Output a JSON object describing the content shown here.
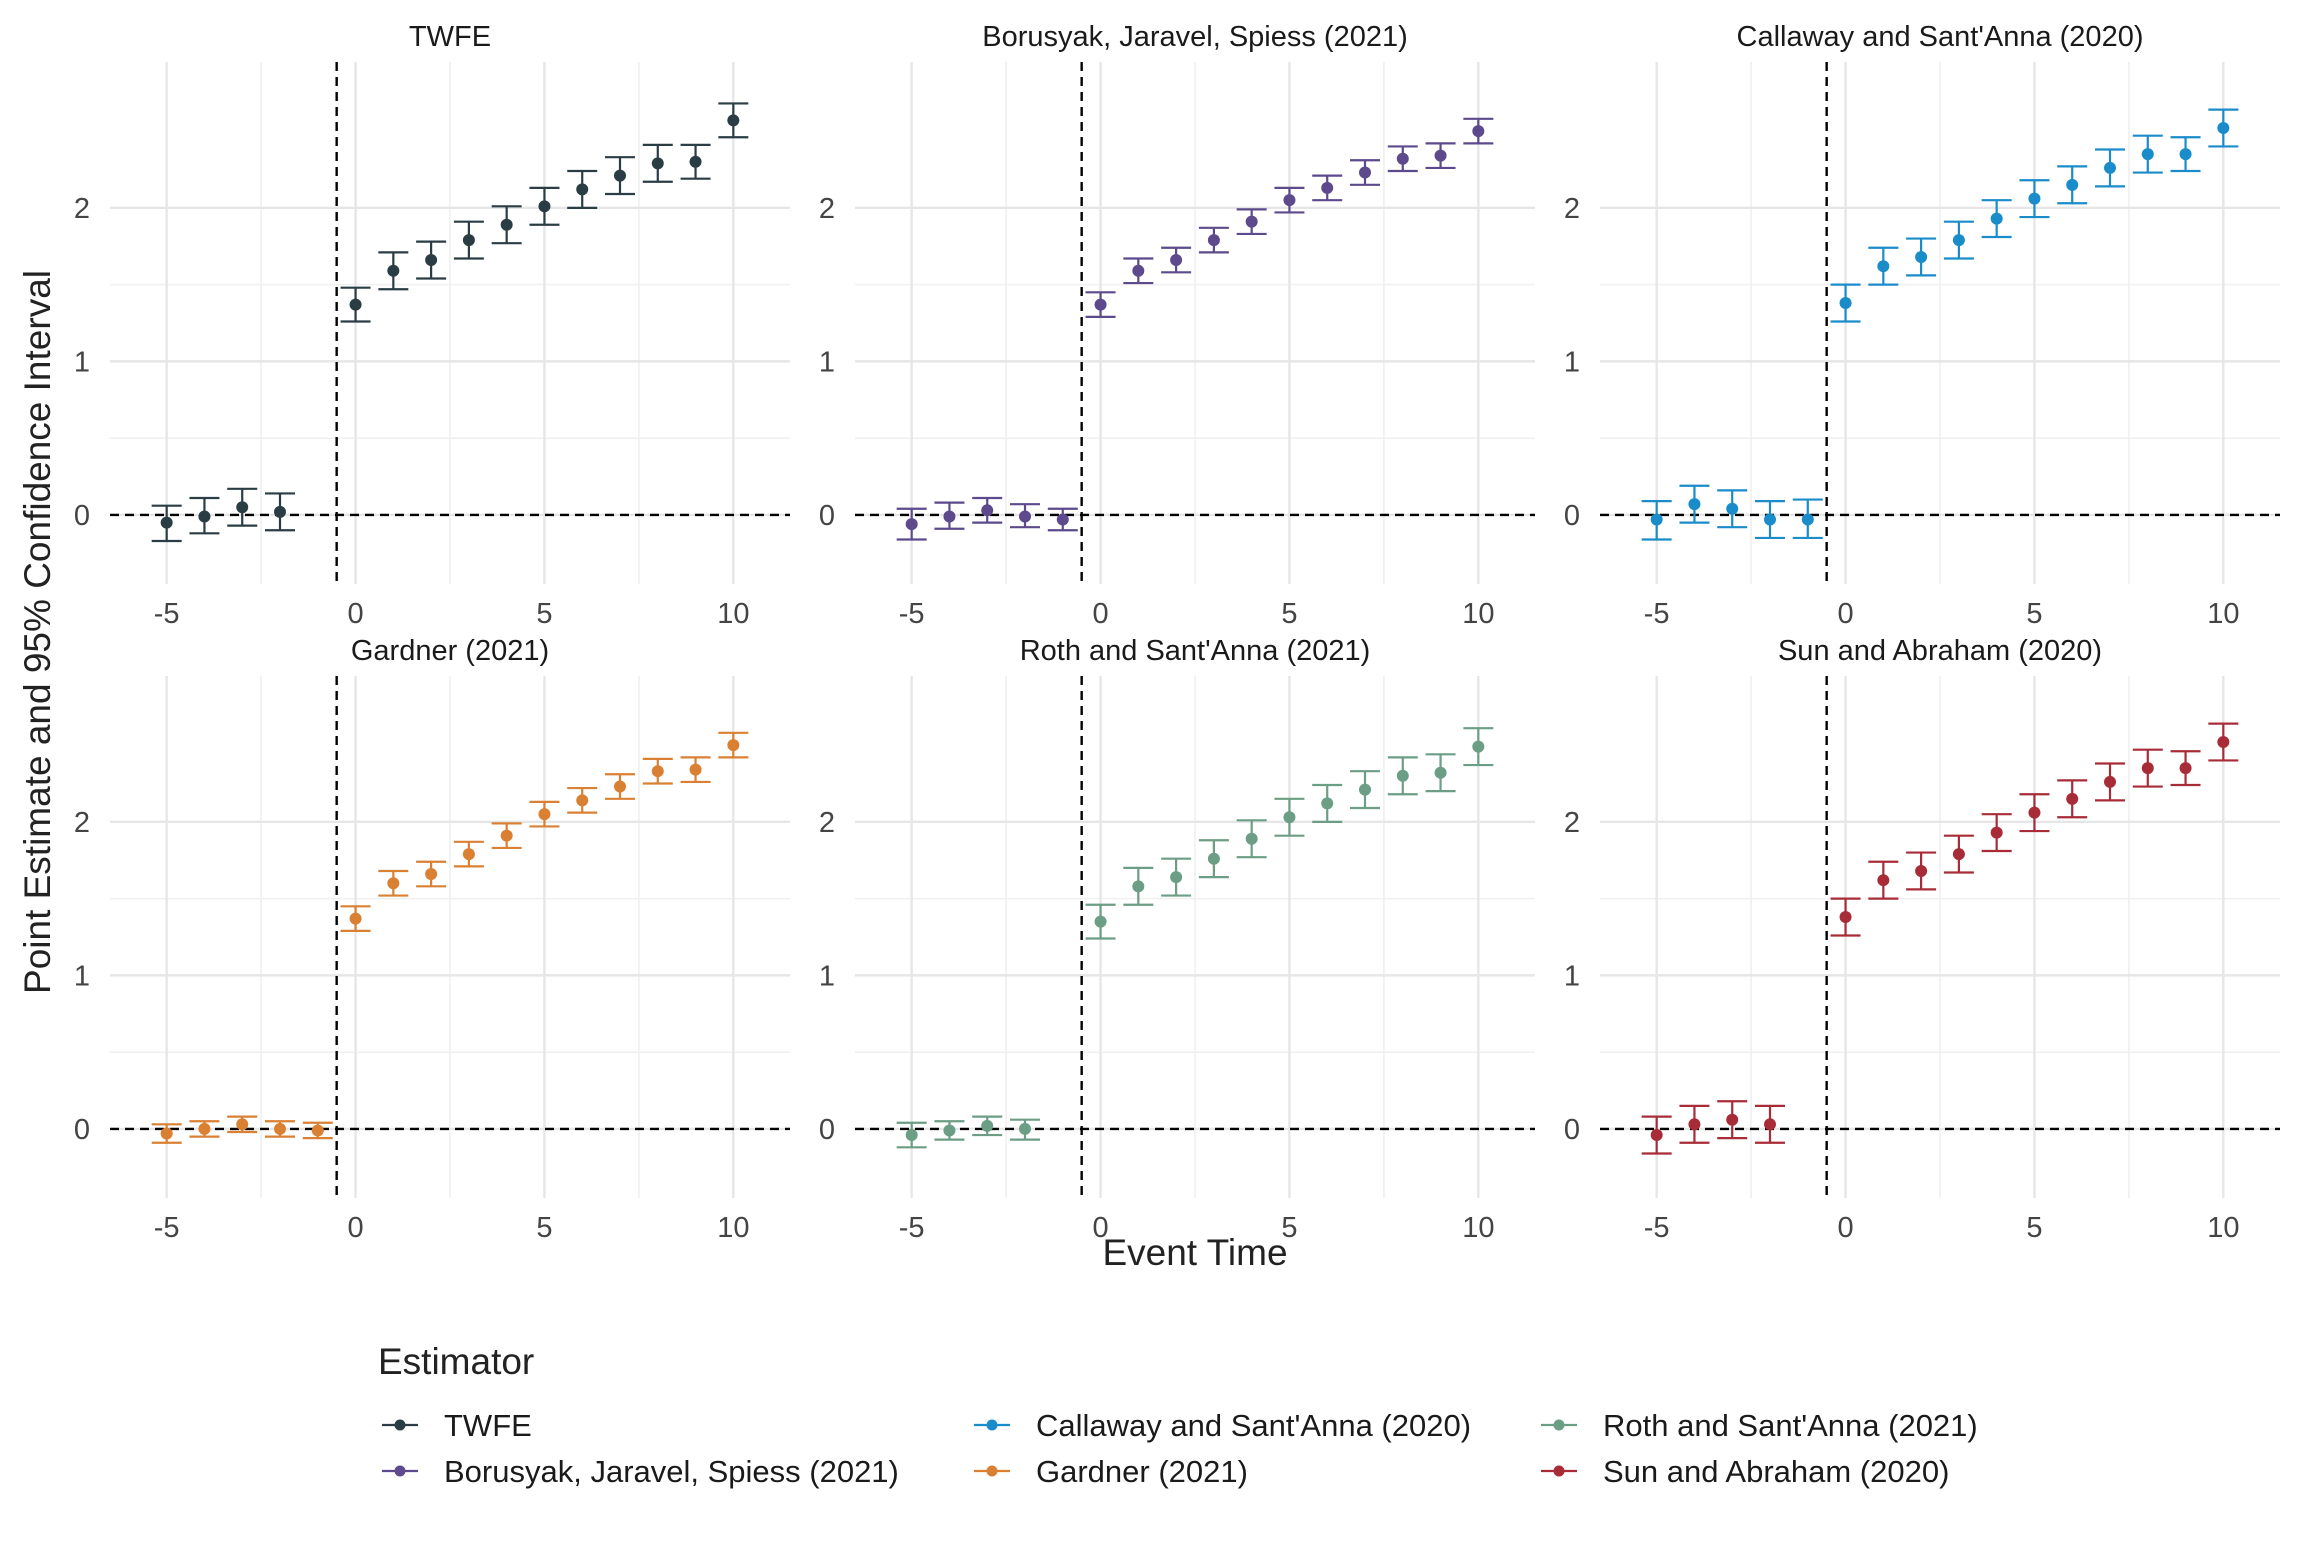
{
  "figure": {
    "xlabel": "Event Time",
    "ylabel": "Point Estimate and 95% Confidence Interval",
    "legend_title": "Estimator",
    "legend_position": "bottom"
  },
  "chart_data": [
    {
      "type": "scatter",
      "title": "TWFE",
      "color": "#2a3d45",
      "xlim": [
        -6.5,
        11.5
      ],
      "ylim": [
        -0.45,
        2.95
      ],
      "xticks": [
        -5,
        0,
        5,
        10
      ],
      "yticks": [
        0,
        1,
        2
      ],
      "reference_lines": {
        "vertical_x": -0.5,
        "horizontal_y": 0
      },
      "grid": true,
      "x": [
        -5,
        -4,
        -3,
        -2,
        0,
        1,
        2,
        3,
        4,
        5,
        6,
        7,
        8,
        9,
        10
      ],
      "estimate": [
        -0.05,
        -0.01,
        0.05,
        0.02,
        1.37,
        1.59,
        1.66,
        1.79,
        1.89,
        2.01,
        2.12,
        2.21,
        2.29,
        2.3,
        2.57
      ],
      "ci_low": [
        -0.17,
        -0.12,
        -0.07,
        -0.1,
        1.26,
        1.47,
        1.54,
        1.67,
        1.77,
        1.89,
        2.0,
        2.09,
        2.17,
        2.19,
        2.46
      ],
      "ci_high": [
        0.06,
        0.11,
        0.17,
        0.14,
        1.48,
        1.71,
        1.78,
        1.91,
        2.01,
        2.13,
        2.24,
        2.33,
        2.41,
        2.41,
        2.68
      ]
    },
    {
      "type": "scatter",
      "title": "Borusyak, Jaravel, Spiess (2021)",
      "color": "#5c4a8c",
      "xlim": [
        -6.5,
        11.5
      ],
      "ylim": [
        -0.45,
        2.95
      ],
      "xticks": [
        -5,
        0,
        5,
        10
      ],
      "yticks": [
        0,
        1,
        2
      ],
      "reference_lines": {
        "vertical_x": -0.5,
        "horizontal_y": 0
      },
      "grid": true,
      "x": [
        -5,
        -4,
        -3,
        -2,
        -1,
        0,
        1,
        2,
        3,
        4,
        5,
        6,
        7,
        8,
        9,
        10
      ],
      "estimate": [
        -0.06,
        -0.01,
        0.03,
        -0.01,
        -0.03,
        1.37,
        1.59,
        1.66,
        1.79,
        1.91,
        2.05,
        2.13,
        2.23,
        2.32,
        2.34,
        2.5
      ],
      "ci_low": [
        -0.16,
        -0.09,
        -0.05,
        -0.08,
        -0.1,
        1.29,
        1.51,
        1.58,
        1.71,
        1.83,
        1.97,
        2.05,
        2.15,
        2.24,
        2.26,
        2.42
      ],
      "ci_high": [
        0.04,
        0.08,
        0.11,
        0.07,
        0.04,
        1.45,
        1.67,
        1.74,
        1.87,
        1.99,
        2.13,
        2.21,
        2.31,
        2.4,
        2.42,
        2.58
      ]
    },
    {
      "type": "scatter",
      "title": "Callaway and Sant'Anna (2020)",
      "color": "#1a8cc9",
      "xlim": [
        -6.5,
        11.5
      ],
      "ylim": [
        -0.45,
        2.95
      ],
      "xticks": [
        -5,
        0,
        5,
        10
      ],
      "yticks": [
        0,
        1,
        2
      ],
      "reference_lines": {
        "vertical_x": -0.5,
        "horizontal_y": 0
      },
      "grid": true,
      "x": [
        -5,
        -4,
        -3,
        -2,
        -1,
        0,
        1,
        2,
        3,
        4,
        5,
        6,
        7,
        8,
        9,
        10
      ],
      "estimate": [
        -0.03,
        0.07,
        0.04,
        -0.03,
        -0.03,
        1.38,
        1.62,
        1.68,
        1.79,
        1.93,
        2.06,
        2.15,
        2.26,
        2.35,
        2.35,
        2.52
      ],
      "ci_low": [
        -0.16,
        -0.05,
        -0.08,
        -0.15,
        -0.15,
        1.26,
        1.5,
        1.56,
        1.67,
        1.81,
        1.94,
        2.03,
        2.14,
        2.23,
        2.24,
        2.4
      ],
      "ci_high": [
        0.09,
        0.19,
        0.16,
        0.09,
        0.1,
        1.5,
        1.74,
        1.8,
        1.91,
        2.05,
        2.18,
        2.27,
        2.38,
        2.47,
        2.46,
        2.64
      ]
    },
    {
      "type": "scatter",
      "title": "Gardner (2021)",
      "color": "#d98033",
      "xlim": [
        -6.5,
        11.5
      ],
      "ylim": [
        -0.45,
        2.95
      ],
      "xticks": [
        -5,
        0,
        5,
        10
      ],
      "yticks": [
        0,
        1,
        2
      ],
      "reference_lines": {
        "vertical_x": -0.5,
        "horizontal_y": 0
      },
      "grid": true,
      "x": [
        -5,
        -4,
        -3,
        -2,
        -1,
        0,
        1,
        2,
        3,
        4,
        5,
        6,
        7,
        8,
        9,
        10
      ],
      "estimate": [
        -0.03,
        0.0,
        0.03,
        0.0,
        -0.01,
        1.37,
        1.6,
        1.66,
        1.79,
        1.91,
        2.05,
        2.14,
        2.23,
        2.33,
        2.34,
        2.5
      ],
      "ci_low": [
        -0.09,
        -0.05,
        -0.02,
        -0.05,
        -0.06,
        1.29,
        1.52,
        1.58,
        1.71,
        1.83,
        1.97,
        2.06,
        2.15,
        2.25,
        2.26,
        2.42
      ],
      "ci_high": [
        0.03,
        0.05,
        0.08,
        0.05,
        0.04,
        1.45,
        1.68,
        1.74,
        1.87,
        1.99,
        2.13,
        2.22,
        2.31,
        2.41,
        2.42,
        2.58
      ]
    },
    {
      "type": "scatter",
      "title": "Roth and Sant'Anna (2021)",
      "color": "#6b9e84",
      "xlim": [
        -6.5,
        11.5
      ],
      "ylim": [
        -0.45,
        2.95
      ],
      "xticks": [
        -5,
        0,
        5,
        10
      ],
      "yticks": [
        0,
        1,
        2
      ],
      "reference_lines": {
        "vertical_x": -0.5,
        "horizontal_y": 0
      },
      "grid": true,
      "x": [
        -5,
        -4,
        -3,
        -2,
        0,
        1,
        2,
        3,
        4,
        5,
        6,
        7,
        8,
        9,
        10
      ],
      "estimate": [
        -0.04,
        -0.01,
        0.02,
        0.0,
        1.35,
        1.58,
        1.64,
        1.76,
        1.89,
        2.03,
        2.12,
        2.21,
        2.3,
        2.32,
        2.49
      ],
      "ci_low": [
        -0.12,
        -0.07,
        -0.04,
        -0.07,
        1.24,
        1.46,
        1.52,
        1.64,
        1.77,
        1.91,
        2.0,
        2.09,
        2.18,
        2.2,
        2.37
      ],
      "ci_high": [
        0.04,
        0.05,
        0.08,
        0.06,
        1.46,
        1.7,
        1.76,
        1.88,
        2.01,
        2.15,
        2.24,
        2.33,
        2.42,
        2.44,
        2.61
      ]
    },
    {
      "type": "scatter",
      "title": "Sun and Abraham (2020)",
      "color": "#a82c38",
      "xlim": [
        -6.5,
        11.5
      ],
      "ylim": [
        -0.45,
        2.95
      ],
      "xticks": [
        -5,
        0,
        5,
        10
      ],
      "yticks": [
        0,
        1,
        2
      ],
      "reference_lines": {
        "vertical_x": -0.5,
        "horizontal_y": 0
      },
      "grid": true,
      "x": [
        -5,
        -4,
        -3,
        -2,
        0,
        1,
        2,
        3,
        4,
        5,
        6,
        7,
        8,
        9,
        10
      ],
      "estimate": [
        -0.04,
        0.03,
        0.06,
        0.03,
        1.38,
        1.62,
        1.68,
        1.79,
        1.93,
        2.06,
        2.15,
        2.26,
        2.35,
        2.35,
        2.52
      ],
      "ci_low": [
        -0.16,
        -0.09,
        -0.06,
        -0.09,
        1.26,
        1.5,
        1.56,
        1.67,
        1.81,
        1.94,
        2.03,
        2.14,
        2.23,
        2.24,
        2.4
      ],
      "ci_high": [
        0.08,
        0.15,
        0.18,
        0.15,
        1.5,
        1.74,
        1.8,
        1.91,
        2.05,
        2.18,
        2.27,
        2.38,
        2.47,
        2.46,
        2.64
      ]
    }
  ]
}
